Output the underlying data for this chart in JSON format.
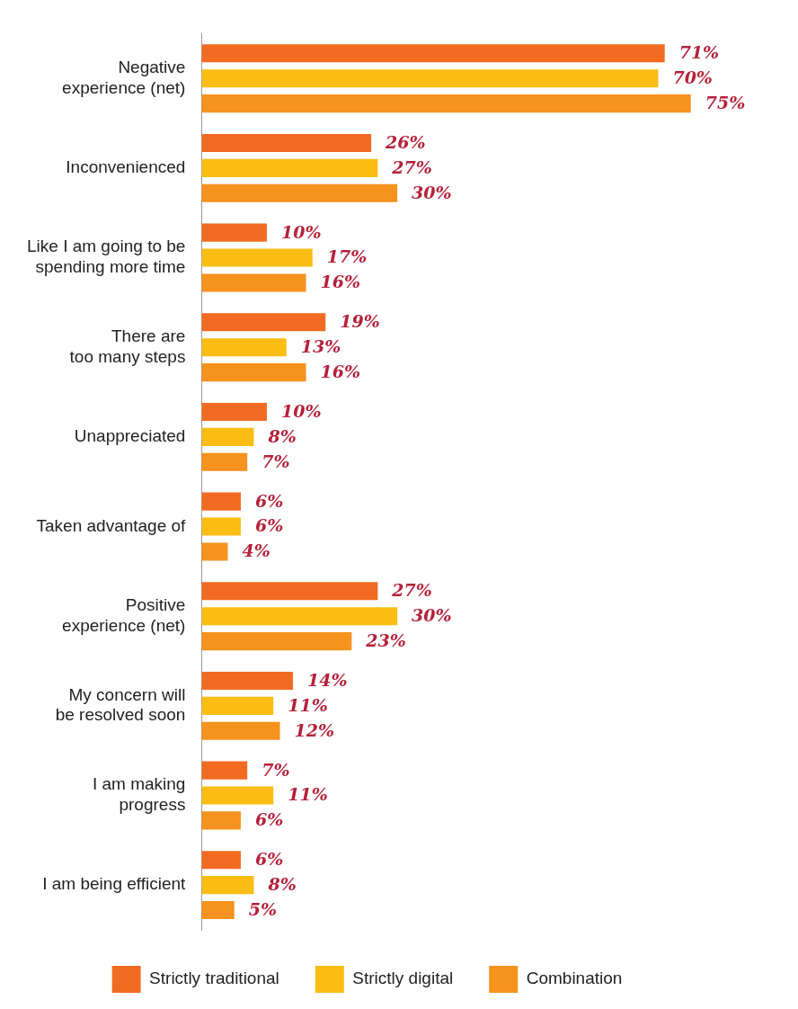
{
  "chart_data": {
    "type": "bar",
    "orientation": "horizontal",
    "categories": [
      "Negative\nexperience (net)",
      "Inconvenienced",
      "Like I am going to be\nspending more time",
      "There are\ntoo many steps",
      "Unappreciated",
      "Taken advantage of",
      "Positive\nexperience (net)",
      "My concern will\nbe resolved soon",
      "I am making\nprogress",
      "I am being efficient"
    ],
    "series": [
      {
        "name": "Strictly traditional",
        "color": "#f26b23",
        "values": [
          71,
          26,
          10,
          19,
          10,
          6,
          27,
          14,
          7,
          6
        ],
        "value_labels": [
          "71%",
          "26%",
          "10%",
          "19%",
          "10%",
          "6%",
          "27%",
          "14%",
          "7%",
          "6%"
        ]
      },
      {
        "name": "Strictly digital",
        "color": "#fbbd13",
        "values": [
          70,
          27,
          17,
          13,
          8,
          6,
          30,
          11,
          11,
          8
        ],
        "value_labels": [
          "70%",
          "27%",
          "17%",
          "13%",
          "8%",
          "6%",
          "30%",
          "11%",
          "11%",
          "8%"
        ]
      },
      {
        "name": "Combination",
        "color": "#f6921e",
        "values": [
          75,
          30,
          16,
          16,
          7,
          4,
          23,
          12,
          6,
          5
        ],
        "value_labels": [
          "75%",
          "30%",
          "16%",
          "16%",
          "7%",
          "4%",
          "23%",
          "12%",
          "6%",
          "5%"
        ]
      }
    ],
    "tick_labels": "y",
    "legend": "bottom",
    "grid": false
  }
}
